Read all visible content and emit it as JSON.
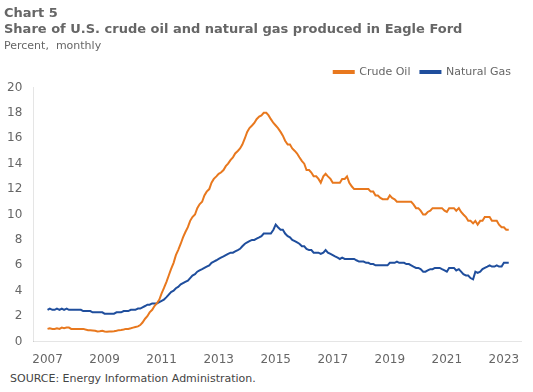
{
  "chart_data": {
    "type": "line",
    "title": [
      "Chart 5",
      "Share of U.S. crude oil and natural gas produced in Eagle Ford"
    ],
    "subtitle": "Percent,  monthly",
    "annotations": [
      "SOURCE: Energy Information Administration."
    ],
    "x": [
      2007,
      2007.08,
      2007.17,
      2007.25,
      2007.33,
      2007.42,
      2007.5,
      2007.58,
      2007.67,
      2007.75,
      2007.83,
      2007.92,
      2008,
      2008.08,
      2008.17,
      2008.25,
      2008.33,
      2008.42,
      2008.5,
      2008.58,
      2008.67,
      2008.75,
      2008.83,
      2008.92,
      2009,
      2009.08,
      2009.17,
      2009.25,
      2009.33,
      2009.42,
      2009.5,
      2009.58,
      2009.67,
      2009.75,
      2009.83,
      2009.92,
      2010,
      2010.08,
      2010.17,
      2010.25,
      2010.33,
      2010.42,
      2010.5,
      2010.58,
      2010.67,
      2010.75,
      2010.83,
      2010.92,
      2011,
      2011.08,
      2011.17,
      2011.25,
      2011.33,
      2011.42,
      2011.5,
      2011.58,
      2011.67,
      2011.75,
      2011.83,
      2011.92,
      2012,
      2012.08,
      2012.17,
      2012.25,
      2012.33,
      2012.42,
      2012.5,
      2012.58,
      2012.67,
      2012.75,
      2012.83,
      2012.92,
      2013,
      2013.08,
      2013.17,
      2013.25,
      2013.33,
      2013.42,
      2013.5,
      2013.58,
      2013.67,
      2013.75,
      2013.83,
      2013.92,
      2014,
      2014.08,
      2014.17,
      2014.25,
      2014.33,
      2014.42,
      2014.5,
      2014.58,
      2014.67,
      2014.75,
      2014.83,
      2014.92,
      2015,
      2015.08,
      2015.17,
      2015.25,
      2015.33,
      2015.42,
      2015.5,
      2015.58,
      2015.67,
      2015.75,
      2015.83,
      2015.92,
      2016,
      2016.08,
      2016.17,
      2016.25,
      2016.33,
      2016.42,
      2016.5,
      2016.58,
      2016.67,
      2016.75,
      2016.83,
      2016.92,
      2017,
      2017.08,
      2017.17,
      2017.25,
      2017.33,
      2017.42,
      2017.5,
      2017.58,
      2017.67,
      2017.75,
      2017.83,
      2017.92,
      2018,
      2018.08,
      2018.17,
      2018.25,
      2018.33,
      2018.42,
      2018.5,
      2018.58,
      2018.67,
      2018.75,
      2018.83,
      2018.92,
      2019,
      2019.08,
      2019.17,
      2019.25,
      2019.33,
      2019.42,
      2019.5,
      2019.58,
      2019.67,
      2019.75,
      2019.83,
      2019.92,
      2020,
      2020.08,
      2020.17,
      2020.25,
      2020.33,
      2020.42,
      2020.5,
      2020.58,
      2020.67,
      2020.75,
      2020.83,
      2020.92,
      2021,
      2021.08,
      2021.17,
      2021.25,
      2021.33,
      2021.42,
      2021.5,
      2021.58,
      2021.67,
      2021.75,
      2021.83,
      2021.92,
      2022,
      2022.08,
      2022.17,
      2022.25,
      2022.33,
      2022.42,
      2022.5,
      2022.58,
      2022.67,
      2022.75,
      2022.83,
      2022.92,
      2023,
      2023.08,
      2023.17
    ],
    "series": [
      {
        "name": "Crude Oil",
        "color": "#E8781E",
        "values": [
          1.0,
          1.05,
          1.0,
          1.0,
          1.05,
          1.0,
          1.1,
          1.05,
          1.1,
          1.1,
          1.0,
          1.0,
          1.0,
          1.0,
          1.0,
          1.0,
          0.95,
          0.9,
          0.9,
          0.88,
          0.85,
          0.8,
          0.82,
          0.85,
          0.8,
          0.78,
          0.8,
          0.8,
          0.82,
          0.85,
          0.9,
          0.92,
          0.95,
          1.0,
          1.0,
          1.05,
          1.1,
          1.15,
          1.2,
          1.3,
          1.5,
          1.8,
          2.0,
          2.3,
          2.5,
          2.8,
          3.0,
          3.3,
          3.8,
          4.2,
          4.7,
          5.2,
          5.7,
          6.2,
          6.8,
          7.2,
          7.7,
          8.2,
          8.6,
          9.0,
          9.5,
          9.8,
          10.0,
          10.5,
          10.8,
          11.0,
          11.5,
          11.8,
          12.0,
          12.5,
          12.8,
          13.0,
          13.2,
          13.3,
          13.5,
          13.8,
          14.0,
          14.3,
          14.5,
          14.8,
          15.0,
          15.2,
          15.5,
          16.0,
          16.5,
          16.8,
          17.0,
          17.2,
          17.5,
          17.7,
          17.8,
          18.0,
          18.0,
          17.8,
          17.5,
          17.2,
          17.0,
          16.8,
          16.5,
          16.2,
          15.8,
          15.5,
          15.5,
          15.2,
          15.0,
          14.8,
          14.5,
          14.2,
          14.0,
          13.5,
          13.5,
          13.3,
          13.0,
          13.0,
          12.8,
          12.5,
          13.0,
          13.2,
          13.0,
          12.8,
          12.5,
          12.5,
          12.5,
          12.5,
          12.8,
          12.8,
          13.0,
          12.5,
          12.2,
          12.0,
          12.0,
          12.0,
          12.0,
          12.0,
          12.0,
          12.0,
          11.8,
          11.8,
          11.5,
          11.5,
          11.3,
          11.2,
          11.2,
          11.2,
          11.5,
          11.3,
          11.2,
          11.0,
          11.0,
          11.0,
          11.0,
          11.0,
          11.0,
          11.0,
          10.8,
          10.5,
          10.5,
          10.3,
          10.0,
          10.0,
          10.2,
          10.3,
          10.5,
          10.5,
          10.5,
          10.5,
          10.5,
          10.3,
          10.2,
          10.5,
          10.5,
          10.5,
          10.3,
          10.5,
          10.2,
          10.0,
          9.8,
          9.5,
          9.5,
          9.3,
          9.5,
          9.2,
          9.5,
          9.5,
          9.8,
          9.8,
          9.8,
          9.5,
          9.5,
          9.5,
          9.2,
          9.0,
          9.0,
          8.8,
          8.8
        ]
      },
      {
        "name": "Natural Gas",
        "color": "#1F4E9D",
        "values": [
          2.5,
          2.6,
          2.5,
          2.5,
          2.6,
          2.5,
          2.6,
          2.5,
          2.6,
          2.5,
          2.5,
          2.5,
          2.5,
          2.5,
          2.5,
          2.4,
          2.4,
          2.4,
          2.4,
          2.3,
          2.3,
          2.3,
          2.3,
          2.3,
          2.2,
          2.2,
          2.2,
          2.2,
          2.2,
          2.3,
          2.3,
          2.3,
          2.4,
          2.4,
          2.4,
          2.5,
          2.5,
          2.5,
          2.6,
          2.6,
          2.7,
          2.8,
          2.9,
          2.9,
          3.0,
          3.0,
          3.0,
          3.1,
          3.2,
          3.3,
          3.5,
          3.7,
          3.9,
          4.0,
          4.2,
          4.3,
          4.5,
          4.6,
          4.7,
          4.8,
          5.0,
          5.2,
          5.3,
          5.5,
          5.6,
          5.7,
          5.8,
          5.9,
          6.0,
          6.2,
          6.3,
          6.4,
          6.5,
          6.6,
          6.7,
          6.8,
          6.9,
          7.0,
          7.0,
          7.1,
          7.2,
          7.3,
          7.5,
          7.7,
          7.8,
          7.9,
          8.0,
          8.0,
          8.1,
          8.2,
          8.3,
          8.5,
          8.5,
          8.5,
          8.5,
          8.8,
          9.2,
          9.0,
          8.8,
          8.8,
          8.5,
          8.3,
          8.2,
          8.0,
          7.9,
          7.8,
          7.7,
          7.5,
          7.5,
          7.3,
          7.2,
          7.2,
          7.0,
          7.0,
          7.0,
          6.9,
          7.0,
          7.2,
          7.0,
          6.9,
          6.8,
          6.7,
          6.6,
          6.5,
          6.6,
          6.5,
          6.5,
          6.5,
          6.5,
          6.5,
          6.4,
          6.3,
          6.3,
          6.3,
          6.2,
          6.2,
          6.1,
          6.1,
          6.0,
          6.0,
          6.0,
          6.0,
          6.0,
          6.0,
          6.2,
          6.2,
          6.2,
          6.3,
          6.2,
          6.2,
          6.2,
          6.1,
          6.1,
          6.0,
          5.9,
          5.8,
          5.8,
          5.7,
          5.5,
          5.5,
          5.6,
          5.7,
          5.7,
          5.8,
          5.8,
          5.8,
          5.7,
          5.6,
          5.5,
          5.8,
          5.8,
          5.8,
          5.6,
          5.7,
          5.5,
          5.3,
          5.2,
          5.2,
          5.0,
          4.9,
          5.5,
          5.4,
          5.5,
          5.7,
          5.8,
          5.9,
          6.0,
          5.9,
          5.9,
          6.0,
          5.9,
          5.9,
          6.2,
          6.2,
          6.2
        ]
      }
    ],
    "xlim": [
      2006.5,
      2023.6
    ],
    "xticks": [
      2007,
      2009,
      2011,
      2013,
      2015,
      2017,
      2019,
      2021,
      2023
    ],
    "ylim": [
      0,
      20
    ],
    "yticks": [
      0,
      2,
      4,
      6,
      8,
      10,
      12,
      14,
      16,
      18,
      20
    ],
    "grid": false,
    "legend": "upper right"
  }
}
